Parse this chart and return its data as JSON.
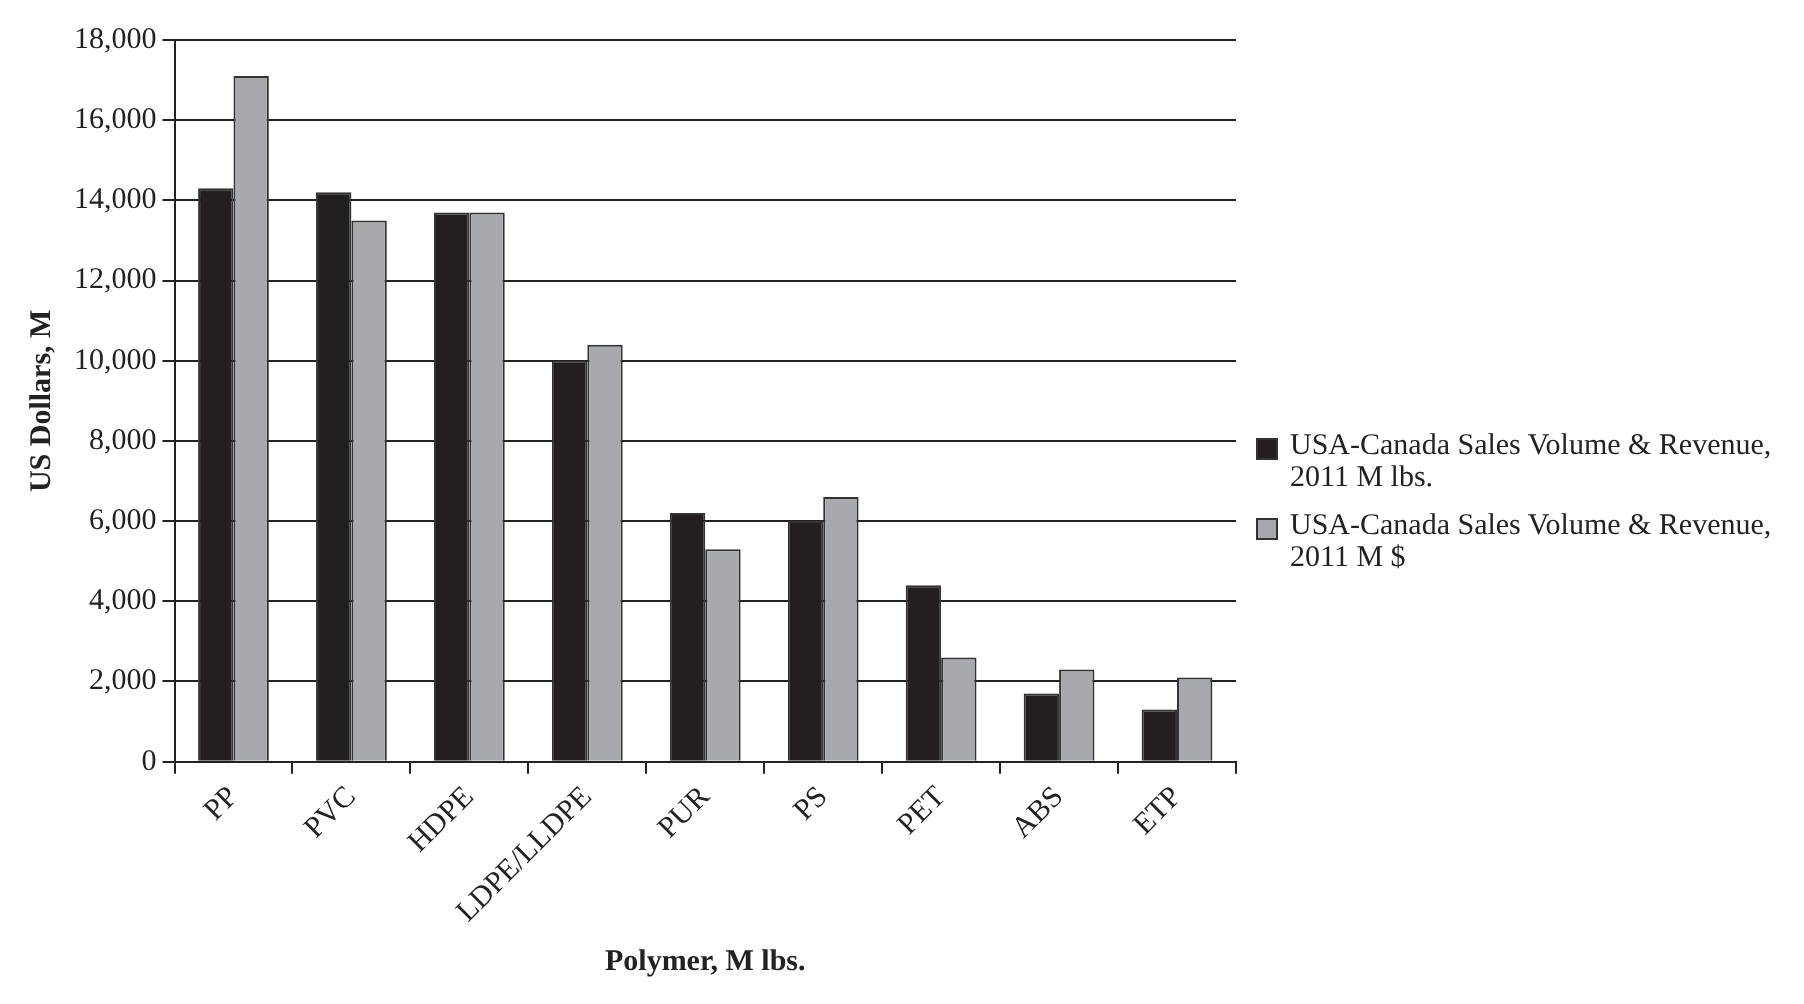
{
  "chart_data": {
    "type": "bar",
    "xlabel": "Polymer, M lbs.",
    "ylabel": "US Dollars, M",
    "categories": [
      "PP",
      "PVC",
      "HDPE",
      "LDPE/LLDPE",
      "PUR",
      "PS",
      "PET",
      "ABS",
      "ETP"
    ],
    "series": [
      {
        "name": "USA-Canada Sales Volume & Revenue, 2011 M lbs.",
        "color": "#231f20",
        "values": [
          14300,
          14200,
          13700,
          10000,
          6200,
          6000,
          4400,
          1700,
          1300
        ]
      },
      {
        "name": "USA-Canada Sales Volume & Revenue, 2011 M $",
        "color": "#a7a9ac",
        "values": [
          17100,
          13500,
          13700,
          10400,
          5300,
          6600,
          2600,
          2300,
          2100
        ]
      }
    ],
    "ylim": [
      0,
      18000
    ],
    "yticks": [
      0,
      {
        "value": 2000,
        "label": "2,000"
      },
      {
        "value": 4000,
        "label": "4,000"
      },
      {
        "value": 6000,
        "label": "6,000"
      },
      {
        "value": 8000,
        "label": "8,000"
      },
      {
        "value": 10000,
        "label": "10,000"
      },
      {
        "value": 12000,
        "label": "12,000"
      },
      {
        "value": 14000,
        "label": "14,000"
      },
      {
        "value": 16000,
        "label": "16,000"
      },
      {
        "value": 18000,
        "label": "18,000"
      }
    ],
    "grid": "y",
    "legend": "right"
  }
}
